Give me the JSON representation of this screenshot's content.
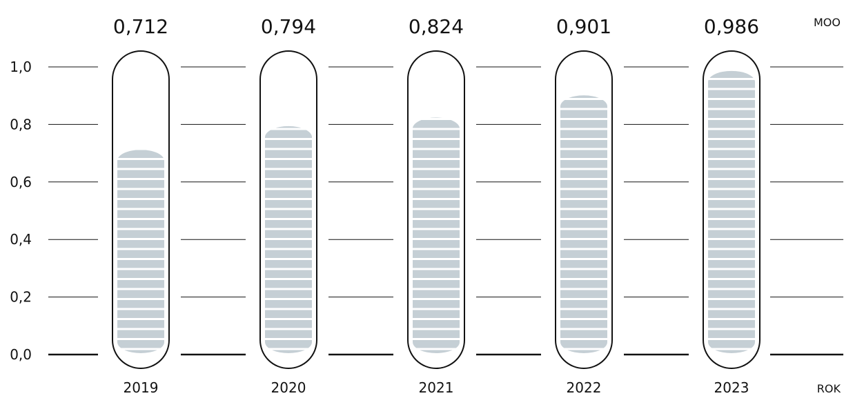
{
  "chart_data": {
    "type": "bar",
    "style": "thermometer-tubes",
    "categories": [
      "2019",
      "2020",
      "2021",
      "2022",
      "2023"
    ],
    "values": [
      0.712,
      0.794,
      0.824,
      0.901,
      0.986
    ],
    "value_labels": [
      "0,712",
      "0,794",
      "0,824",
      "0,901",
      "0,986"
    ],
    "y_tick_values": [
      0,
      0.2,
      0.4,
      0.6,
      0.8,
      1.0
    ],
    "y_tick_labels": [
      "0,0",
      "0,2",
      "0,4",
      "0,6",
      "0,8",
      "1,0"
    ],
    "ylim": [
      0,
      1.0
    ],
    "ylabel": "MOO",
    "xlabel": "ROK",
    "grid": true,
    "colors": {
      "fill": "#c5cfd5",
      "stripe": "#ffffff",
      "outline": "#111111",
      "grid": "#111111"
    }
  }
}
